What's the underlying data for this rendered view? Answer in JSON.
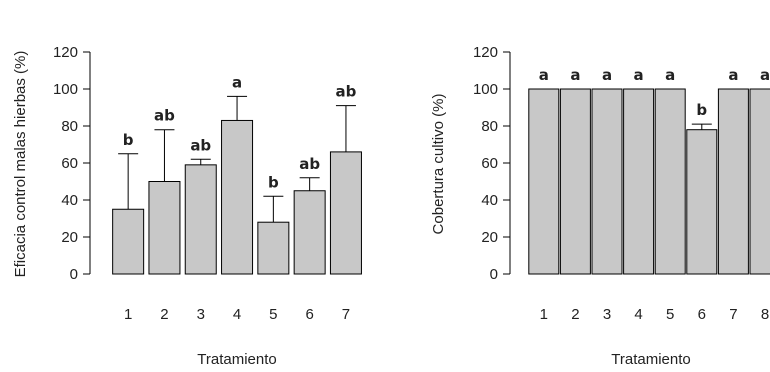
{
  "chart_data": [
    {
      "type": "bar",
      "categories": [
        "1",
        "2",
        "3",
        "4",
        "5",
        "6",
        "7"
      ],
      "values": [
        35,
        50,
        59,
        83,
        28,
        45,
        66
      ],
      "error_upper": [
        65,
        78,
        62,
        96,
        42,
        52,
        91
      ],
      "significance": [
        "b",
        "ab",
        "ab",
        "a",
        "b",
        "ab",
        "ab"
      ],
      "title": "",
      "xlabel": "Tratamiento",
      "ylabel": "Eficacia control malas hierbas (%)",
      "ylim": [
        0,
        120
      ],
      "yticks": [
        "0",
        "20",
        "40",
        "60",
        "80",
        "100",
        "120"
      ],
      "grid": false,
      "bar_color": "#c8c8c8"
    },
    {
      "type": "bar",
      "categories": [
        "1",
        "2",
        "3",
        "4",
        "5",
        "6",
        "7",
        "8"
      ],
      "values": [
        100,
        100,
        100,
        100,
        100,
        78,
        100,
        100
      ],
      "error_upper": [
        100,
        100,
        100,
        100,
        100,
        81,
        100,
        100
      ],
      "significance": [
        "a",
        "a",
        "a",
        "a",
        "a",
        "b",
        "a",
        "a"
      ],
      "title": "",
      "xlabel": "Tratamiento",
      "ylabel": "Cobertura cultivo (%)",
      "ylim": [
        0,
        120
      ],
      "yticks": [
        "0",
        "20",
        "40",
        "60",
        "80",
        "100",
        "120"
      ],
      "grid": false,
      "bar_color": "#c8c8c8"
    }
  ]
}
